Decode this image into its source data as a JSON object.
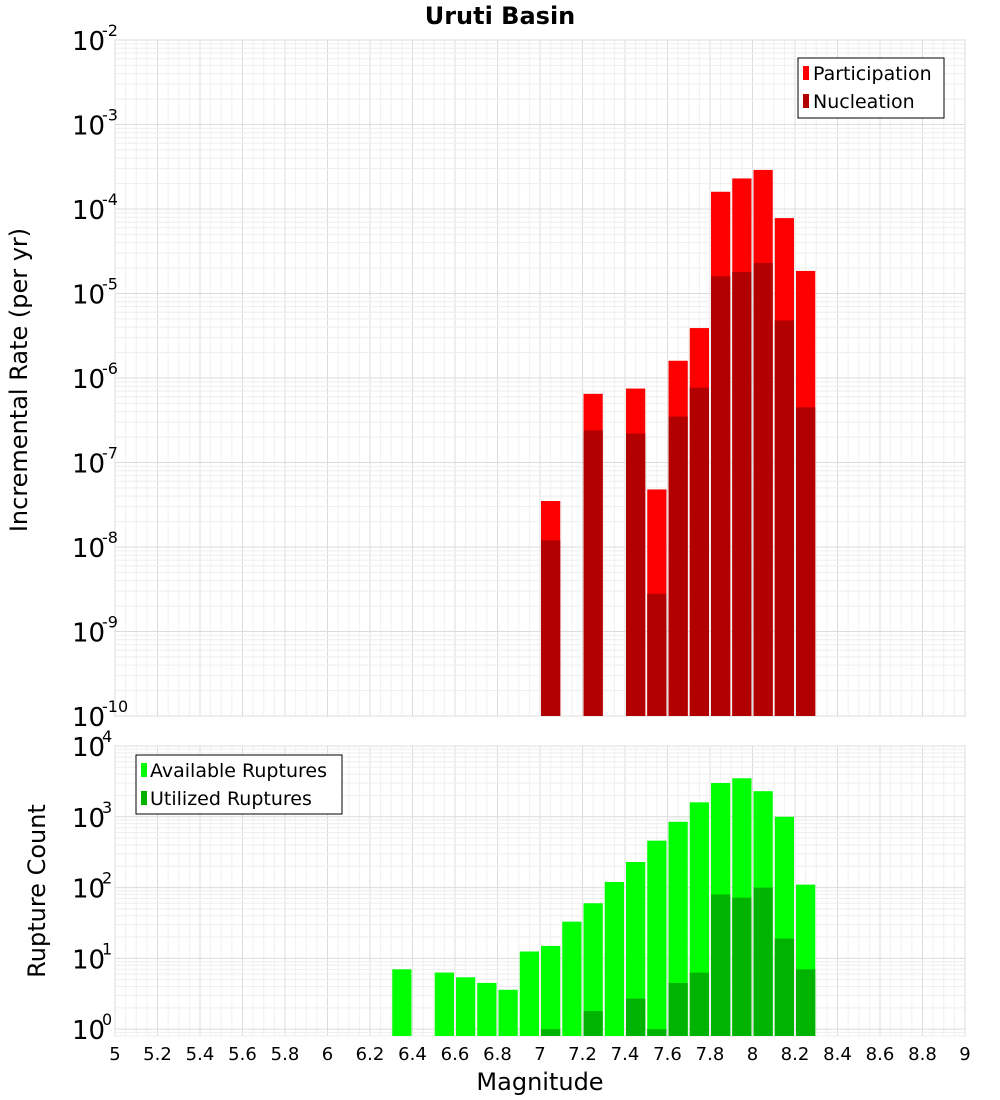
{
  "chart_data": [
    {
      "type": "bar",
      "title": "Uruti Basin",
      "ylabel": "Incremental Rate (per yr)",
      "xlabel": "",
      "y_scale": "log",
      "ylim": [
        1e-10,
        0.01
      ],
      "xlim": [
        5,
        9
      ],
      "legend_position": "top-right",
      "y_ticks": [
        {
          "base": "10",
          "exp": "-10",
          "value": 1e-10
        },
        {
          "base": "10",
          "exp": "-9",
          "value": 1e-09
        },
        {
          "base": "10",
          "exp": "-8",
          "value": 1e-08
        },
        {
          "base": "10",
          "exp": "-7",
          "value": 1e-07
        },
        {
          "base": "10",
          "exp": "-6",
          "value": 1e-06
        },
        {
          "base": "10",
          "exp": "-5",
          "value": 1e-05
        },
        {
          "base": "10",
          "exp": "-4",
          "value": 0.0001
        },
        {
          "base": "10",
          "exp": "-3",
          "value": 0.001
        },
        {
          "base": "10",
          "exp": "-2",
          "value": 0.01
        }
      ],
      "x": [
        7.05,
        7.25,
        7.45,
        7.55,
        7.65,
        7.75,
        7.85,
        7.95,
        8.05,
        8.15,
        8.25
      ],
      "series": [
        {
          "name": "Participation",
          "color": "#ff0000",
          "values": [
            3.5e-08,
            6.5e-07,
            7.5e-07,
            4.8e-08,
            1.6e-06,
            3.9e-06,
            0.00016,
            0.00023,
            0.00029,
            7.8e-05,
            1.85e-05
          ]
        },
        {
          "name": "Nucleation",
          "color": "#b20000",
          "values": [
            1.2e-08,
            2.4e-07,
            2.2e-07,
            2.8e-09,
            3.5e-07,
            7.7e-07,
            1.6e-05,
            1.8e-05,
            2.3e-05,
            4.8e-06,
            4.5e-07
          ]
        }
      ]
    },
    {
      "type": "bar",
      "title": "",
      "ylabel": "Rupture Count",
      "xlabel": "Magnitude",
      "y_scale": "log",
      "ylim": [
        0.8,
        10000.0
      ],
      "xlim": [
        5,
        9
      ],
      "legend_position": "top-left",
      "y_ticks": [
        {
          "base": "10",
          "exp": "0",
          "value": 1
        },
        {
          "base": "10",
          "exp": "1",
          "value": 10
        },
        {
          "base": "10",
          "exp": "2",
          "value": 100
        },
        {
          "base": "10",
          "exp": "3",
          "value": 1000
        },
        {
          "base": "10",
          "exp": "4",
          "value": 10000
        }
      ],
      "x_ticks": [
        "5",
        "5.2",
        "5.4",
        "5.6",
        "5.8",
        "6",
        "6.2",
        "6.4",
        "6.6",
        "6.8",
        "7",
        "7.2",
        "7.4",
        "7.6",
        "7.8",
        "8",
        "8.2",
        "8.4",
        "8.6",
        "8.8",
        "9"
      ],
      "x": [
        6.35,
        6.55,
        6.65,
        6.75,
        6.85,
        6.95,
        7.05,
        7.15,
        7.25,
        7.35,
        7.45,
        7.55,
        7.65,
        7.75,
        7.85,
        7.95,
        8.05,
        8.15,
        8.25
      ],
      "series": [
        {
          "name": "Available Ruptures",
          "color": "#00ff00",
          "values": [
            7,
            6.3,
            5.4,
            4.5,
            3.6,
            12.5,
            15,
            33,
            60,
            120,
            230,
            460,
            850,
            1600,
            3000,
            3500,
            2300,
            1000,
            110
          ]
        },
        {
          "name": "Utilized Ruptures",
          "color": "#00b300",
          "values": [
            null,
            null,
            null,
            null,
            null,
            null,
            1,
            null,
            1.8,
            null,
            2.7,
            1,
            4.5,
            6.3,
            80,
            72,
            100,
            19,
            7
          ]
        }
      ]
    }
  ]
}
